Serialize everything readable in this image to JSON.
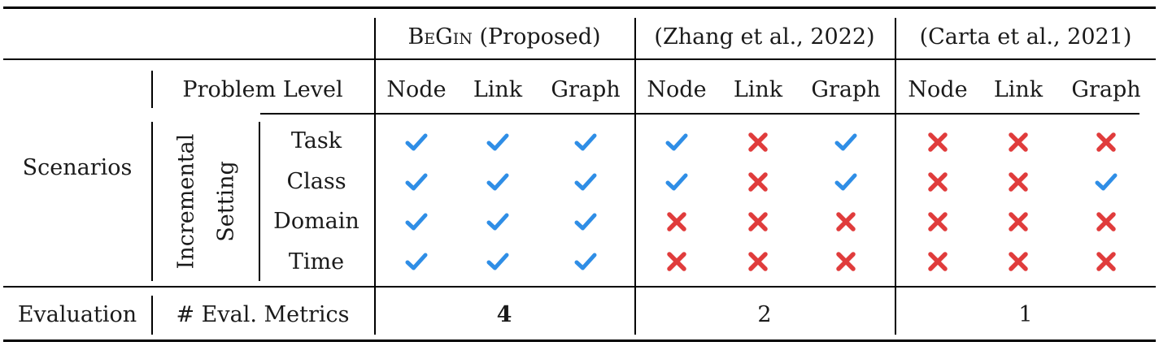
{
  "header": {
    "groups": [
      {
        "label_sc": "BeGin",
        "label_rest": " (Proposed)"
      },
      {
        "label": "(Zhang et al., 2022)"
      },
      {
        "label": "(Carta et al., 2021)"
      }
    ]
  },
  "problem_level": {
    "label": "Problem Level",
    "levels": [
      "Node",
      "Link",
      "Graph",
      "Node",
      "Link",
      "Graph",
      "Node",
      "Link",
      "Graph"
    ]
  },
  "scenarios": {
    "label": "Scenarios",
    "setting_line1": "Incremental",
    "setting_line2": "Setting",
    "rows": [
      {
        "name": "Task",
        "support": [
          true,
          true,
          true,
          true,
          false,
          true,
          false,
          false,
          false
        ]
      },
      {
        "name": "Class",
        "support": [
          true,
          true,
          true,
          true,
          false,
          true,
          false,
          false,
          true
        ]
      },
      {
        "name": "Domain",
        "support": [
          true,
          true,
          true,
          false,
          false,
          false,
          false,
          false,
          false
        ]
      },
      {
        "name": "Time",
        "support": [
          true,
          true,
          true,
          false,
          false,
          false,
          false,
          false,
          false
        ]
      }
    ]
  },
  "evaluation": {
    "label": "Evaluation",
    "metric_label": "# Eval. Metrics",
    "values": [
      "4",
      "2",
      "1"
    ]
  },
  "colors": {
    "check": "#2f8ee6",
    "cross": "#e03c3c"
  }
}
